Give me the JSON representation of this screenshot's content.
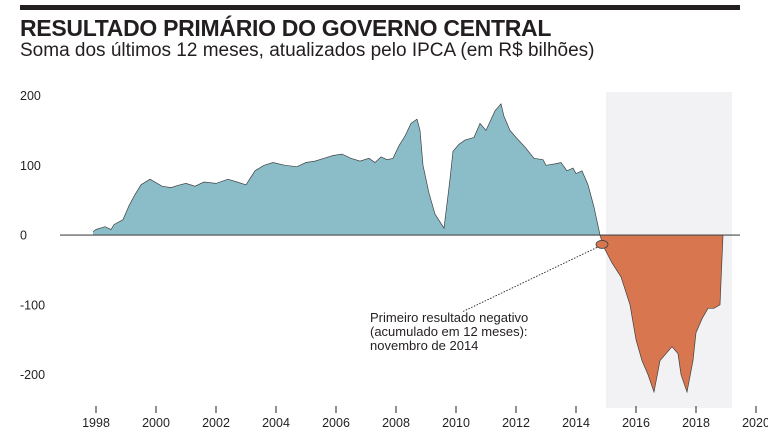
{
  "chart_data": {
    "type": "area",
    "title": "RESULTADO PRIMÁRIO DO GOVERNO CENTRAL",
    "subtitle": "Soma dos últimos 12 meses, atualizados pelo IPCA (em R$ bilhões)",
    "xlabel": "",
    "ylabel": "",
    "xlim": [
      1996.8,
      2020.4
    ],
    "ylim": [
      -245,
      205
    ],
    "x_ticks": [
      "1998",
      "2000",
      "2002",
      "2004",
      "2006",
      "2008",
      "2010",
      "2012",
      "2014",
      "2016",
      "2018",
      "2020"
    ],
    "y_ticks": [
      "200",
      "100",
      "0",
      "-100",
      "-200"
    ],
    "grid": false,
    "shaded_region": {
      "x_start": 2015.0,
      "x_end": 2019.2,
      "color": "#f2f2f4"
    },
    "colors": {
      "positive": "#8bbdc9",
      "negative": "#d7764f",
      "outline": "#3f4142"
    },
    "x": [
      1997.9,
      1998.0,
      1998.3,
      1998.5,
      1998.6,
      1998.9,
      1999.1,
      1999.3,
      1999.5,
      1999.8,
      2000.0,
      2000.2,
      2000.5,
      2000.8,
      2001.0,
      2001.3,
      2001.6,
      2002.0,
      2002.4,
      2002.7,
      2003.0,
      2003.3,
      2003.6,
      2003.9,
      2004.3,
      2004.7,
      2005.0,
      2005.3,
      2005.6,
      2005.9,
      2006.2,
      2006.5,
      2006.8,
      2007.1,
      2007.3,
      2007.5,
      2007.7,
      2007.9,
      2008.1,
      2008.3,
      2008.5,
      2008.7,
      2008.8,
      2008.9,
      2009.1,
      2009.3,
      2009.6,
      2009.8,
      2009.9,
      2010.1,
      2010.3,
      2010.6,
      2010.8,
      2011.0,
      2011.3,
      2011.5,
      2011.6,
      2011.8,
      2012.0,
      2012.3,
      2012.6,
      2012.9,
      2013.0,
      2013.3,
      2013.5,
      2013.7,
      2013.9,
      2014.0,
      2014.2,
      2014.4,
      2014.6,
      2014.8,
      2014.9,
      2015.2,
      2015.5,
      2015.8,
      2016.0,
      2016.2,
      2016.4,
      2016.6,
      2016.8,
      2017.0,
      2017.2,
      2017.4,
      2017.5,
      2017.7,
      2017.9,
      2018.0,
      2018.2,
      2018.4,
      2018.6,
      2018.8,
      2018.9
    ],
    "values": [
      5,
      8,
      12,
      8,
      15,
      22,
      42,
      58,
      72,
      80,
      75,
      70,
      68,
      72,
      74,
      70,
      76,
      74,
      80,
      76,
      72,
      92,
      100,
      104,
      100,
      98,
      104,
      106,
      110,
      114,
      116,
      110,
      106,
      110,
      104,
      112,
      108,
      110,
      128,
      142,
      160,
      166,
      150,
      100,
      60,
      30,
      10,
      80,
      120,
      130,
      136,
      140,
      160,
      150,
      178,
      188,
      170,
      150,
      140,
      126,
      110,
      108,
      100,
      102,
      104,
      92,
      96,
      88,
      92,
      72,
      40,
      0,
      -15,
      -40,
      -60,
      -100,
      -150,
      -180,
      -200,
      -225,
      -180,
      -170,
      -160,
      -170,
      -200,
      -225,
      -180,
      -140,
      -120,
      -105,
      -105,
      -100,
      0
    ],
    "annotation": {
      "lines": [
        "Primeiro resultado negativo",
        "(acumulado em 12 meses):",
        "novembro de 2014"
      ],
      "target_x": 2014.9,
      "target_y": -12
    }
  }
}
